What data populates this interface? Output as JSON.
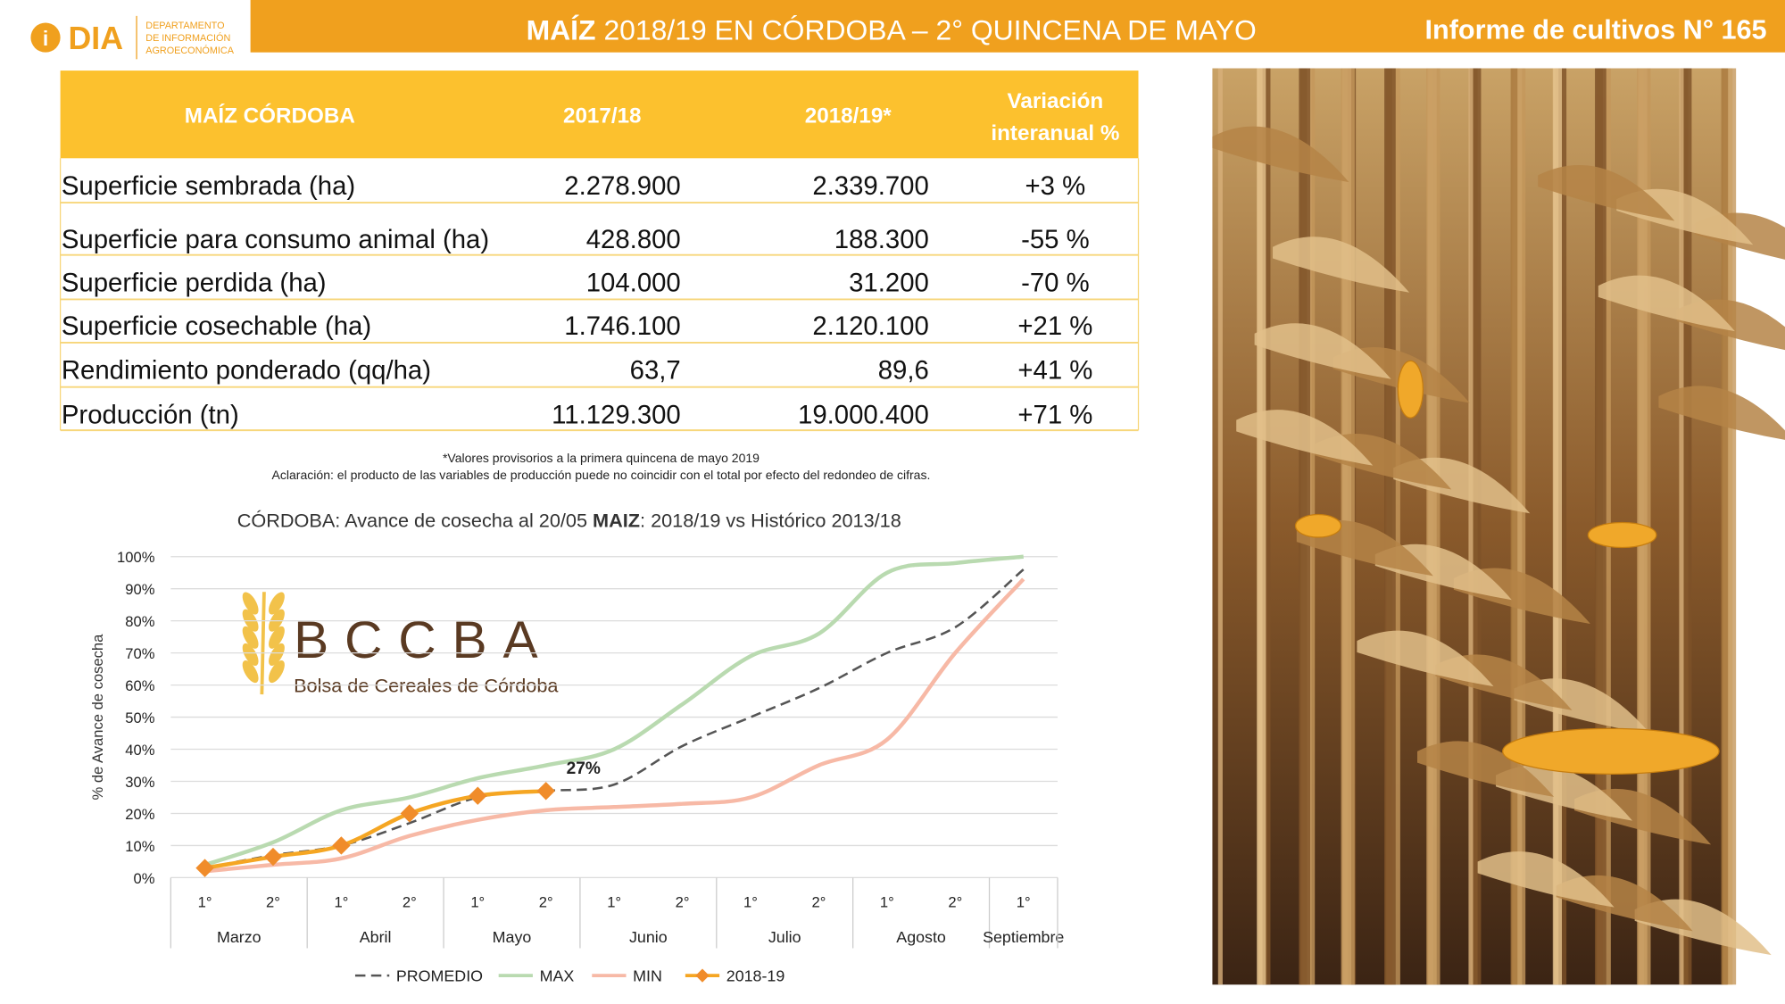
{
  "header": {
    "logo": "DIA",
    "department": [
      "DEPARTAMENTO",
      "DE INFORMACIÓN",
      "AGROECONÓMICA"
    ],
    "title_bold": "MAÍZ",
    "title_rest": "2018/19 EN CÓRDOBA – 2° QUINCENA DE MAYO",
    "report": "Informe de cultivos N° 165"
  },
  "table": {
    "columns": [
      "MAÍZ CÓRDOBA",
      "2017/18",
      "2018/19*",
      [
        "Variación",
        "interanual %"
      ]
    ],
    "rows": [
      [
        "Superficie sembrada (ha)",
        "2.278.900",
        "2.339.700",
        "+3 %"
      ],
      [
        "Superficie para consumo animal (ha)",
        "428.800",
        "188.300",
        "-55 %"
      ],
      [
        "Superficie perdida (ha)",
        "104.000",
        "31.200",
        "-70 %"
      ],
      [
        "Superficie cosechable (ha)",
        "1.746.100",
        "2.120.100",
        "+21 %"
      ],
      [
        "Rendimiento ponderado (qq/ha)",
        "63,7",
        "89,6",
        "+41 %"
      ],
      [
        "Producción (tn)",
        "11.129.300",
        "19.000.400",
        "+71 %"
      ]
    ]
  },
  "notes": [
    "*Valores provisorios a la primera quincena de mayo 2019",
    "Aclaración: el producto de las variables de producción puede no coincidir con el total por efecto del redondeo de cifras."
  ],
  "watermark": {
    "name": "BCCBA",
    "full": "Bolsa de Cereales de Córdoba"
  },
  "chart_data": {
    "type": "line",
    "title": [
      "CÓRDOBA: Avance de cosecha al 20/05 ",
      "MAIZ",
      ": 2018/19 vs Histórico 2013/18"
    ],
    "y_label": "% de Avance de cosecha",
    "categories": [
      "1°",
      "2°",
      "1°",
      "2°",
      "1°",
      "2°",
      "1°",
      "2°",
      "1°",
      "2°",
      "1°",
      "2°",
      "1°"
    ],
    "month_groups": [
      "Marzo",
      "Abril",
      "Mayo",
      "Junio",
      "Julio",
      "Agosto",
      "Septiembre"
    ],
    "ylim": [
      0,
      100
    ],
    "yticks": [
      {
        "value": 0,
        "label": "0%"
      },
      {
        "value": 10,
        "label": "10%"
      },
      {
        "value": 20,
        "label": "20%"
      },
      {
        "value": 30,
        "label": "30%"
      },
      {
        "value": 40,
        "label": "40%"
      },
      {
        "value": 50,
        "label": "50%"
      },
      {
        "value": 60,
        "label": "60%"
      },
      {
        "value": 70,
        "label": "70%"
      },
      {
        "value": 80,
        "label": "80%"
      },
      {
        "value": 90,
        "label": "90%"
      },
      {
        "value": 100,
        "label": "100%"
      }
    ],
    "grid": true,
    "series": [
      {
        "name": "PROMEDIO",
        "color": "#555555",
        "dashed": true,
        "values": [
          3,
          7,
          10,
          17,
          25,
          27,
          29,
          41,
          50,
          59,
          70,
          78,
          96
        ]
      },
      {
        "name": "MAX",
        "color": "#b9dab0",
        "values": [
          4,
          11,
          21,
          25,
          31,
          35,
          40,
          54,
          69,
          76,
          95,
          98,
          100
        ]
      },
      {
        "name": "MIN",
        "color": "#f7b9a6",
        "values": [
          2,
          4,
          6,
          13,
          18,
          21,
          22,
          23,
          25,
          35,
          43,
          70,
          93
        ]
      },
      {
        "name": "2018-19",
        "color": "#f5a623",
        "markers": true,
        "values": [
          3,
          6.5,
          10,
          20,
          25.5,
          27,
          null,
          null,
          null,
          null,
          null,
          null,
          null
        ],
        "value_labels": [
          null,
          null,
          null,
          null,
          null,
          "27%",
          null,
          null,
          null,
          null,
          null,
          null,
          null
        ]
      }
    ]
  }
}
